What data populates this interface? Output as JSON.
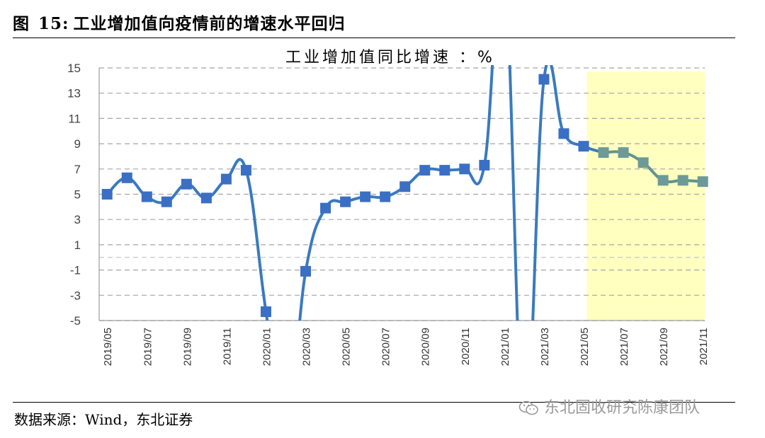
{
  "figure": {
    "label": "图",
    "number": "15:",
    "title": "工业增加值向疫情前的增速水平回归"
  },
  "source": "数据来源：Wind，东北证券",
  "watermark": "东北固收研究陈康团队",
  "colors": {
    "line": "#3a7abf",
    "marker": "#3a6fc4",
    "highlight_line": "#5f9490",
    "highlight_marker": "#6d9a96",
    "highlight_fill": "#ffffc0",
    "grid": "#a6a6a6"
  },
  "chart_data": {
    "type": "line",
    "title": "工业增加值同比增速 ：%",
    "xlabel": "",
    "ylabel": "",
    "ylim": [
      -5,
      15
    ],
    "yticks": [
      15,
      13,
      11,
      9,
      7,
      5,
      3,
      1,
      -1,
      -3,
      -5
    ],
    "grid": true,
    "x_tick_labels": [
      "2019/05",
      "2019/07",
      "2019/09",
      "2019/11",
      "2020/01",
      "2020/03",
      "2020/05",
      "2020/07",
      "2020/09",
      "2020/11",
      "2021/01",
      "2021/03",
      "2021/05",
      "2021/07",
      "2021/09",
      "2021/11"
    ],
    "highlight_range": [
      "2021/06",
      "2021/11"
    ],
    "series": [
      {
        "x": [
          "2019/05",
          "2019/06",
          "2019/07",
          "2019/08",
          "2019/09",
          "2019/10",
          "2019/11",
          "2019/12",
          "2020/01",
          "2020/02",
          "2020/03",
          "2020/04",
          "2020/05",
          "2020/06",
          "2020/07",
          "2020/08",
          "2020/09",
          "2020/10",
          "2020/11",
          "2020/12",
          "2021/01",
          "2021/02",
          "2021/03",
          "2021/04",
          "2021/05",
          "2021/06",
          "2021/07",
          "2021/08",
          "2021/09",
          "2021/10",
          "2021/11"
        ],
        "values": [
          5.0,
          6.3,
          4.8,
          4.4,
          5.8,
          4.7,
          6.2,
          6.9,
          -4.3,
          null,
          -1.1,
          3.9,
          4.4,
          4.8,
          4.8,
          5.6,
          6.9,
          6.9,
          7.0,
          7.3,
          null,
          null,
          14.1,
          9.8,
          8.8,
          8.3,
          8.3,
          7.5,
          6.1,
          6.1,
          6.0
        ]
      }
    ]
  }
}
